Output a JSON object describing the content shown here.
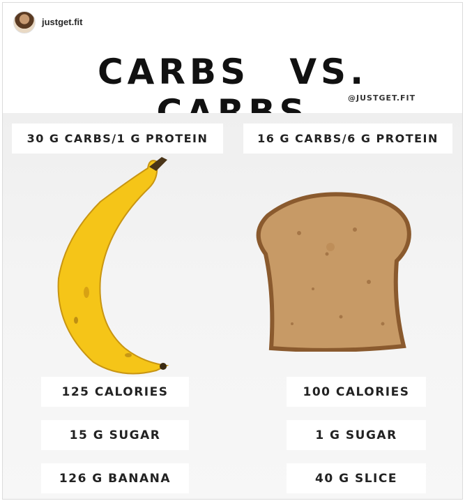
{
  "post": {
    "username": "justget.fit",
    "title": "CARBS  VS.  CARBS",
    "handle": "@JUSTGET.FIT"
  },
  "left": {
    "macro": "30 G CARBS/1 G PROTEIN",
    "stats": [
      "125 CALORIES",
      "15 G SUGAR",
      "126 G BANANA"
    ]
  },
  "right": {
    "macro": "16 G CARBS/6 G PROTEIN",
    "stats": [
      "100 CALORIES",
      "1 G SUGAR",
      "40 G SLICE"
    ]
  },
  "colors": {
    "banana": "#f5c518",
    "bread_crust": "#8a5a2e",
    "bread_crumb": "#c79a66"
  }
}
